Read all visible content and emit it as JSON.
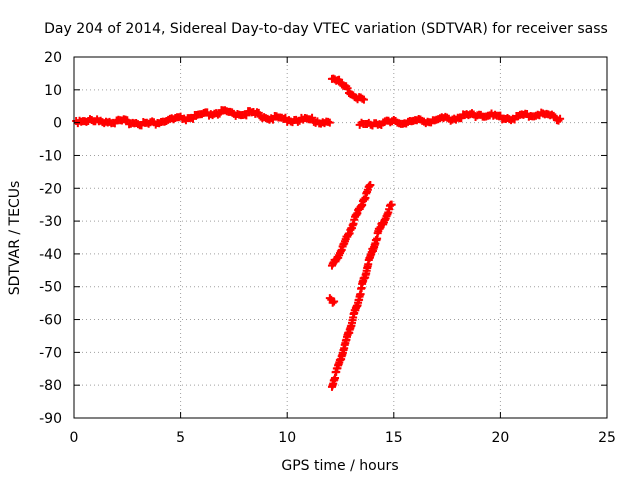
{
  "chart_data": {
    "type": "scatter",
    "title": "Day 204 of 2014, Sidereal Day-to-day VTEC variation (SDTVAR) for receiver sass",
    "xlabel": "GPS time / hours",
    "ylabel": "SDTVAR / TECUs",
    "xlim": [
      0,
      25
    ],
    "ylim": [
      -90,
      20
    ],
    "xticks": [
      "0",
      "5",
      "10",
      "15",
      "20",
      "25"
    ],
    "yticks": [
      "20",
      "10",
      "0",
      "-10",
      "-20",
      "-30",
      "-40",
      "-50",
      "-60",
      "-70",
      "-80",
      "-90"
    ],
    "grid": true,
    "marker_color": "#ff0000",
    "series": [
      {
        "segments": [
          [
            [
              0.1,
              0.5
            ],
            [
              0.5,
              0.8
            ],
            [
              1,
              0.3
            ],
            [
              1.5,
              0.6
            ],
            [
              2,
              0.2
            ],
            [
              2.5,
              0.3
            ],
            [
              3,
              0.0
            ],
            [
              3.5,
              -0.4
            ],
            [
              4,
              0.2
            ],
            [
              4.5,
              0.8
            ],
            [
              5,
              1.2
            ],
            [
              5.5,
              1.5
            ],
            [
              6,
              2.2
            ],
            [
              6.5,
              2.8
            ],
            [
              7,
              3.2
            ],
            [
              7.5,
              2.6
            ],
            [
              8,
              3.0
            ],
            [
              8.5,
              2.6
            ],
            [
              9,
              1.8
            ],
            [
              9.5,
              1.2
            ],
            [
              10,
              1.0
            ],
            [
              10.5,
              0.8
            ],
            [
              11,
              0.9
            ],
            [
              11.5,
              0.4
            ],
            [
              12,
              0.0
            ]
          ],
          [
            [
              13.4,
              -0.8
            ],
            [
              14,
              -0.2
            ],
            [
              14.5,
              0.0
            ],
            [
              15,
              0.1
            ],
            [
              15.5,
              0.2
            ],
            [
              16,
              0.4
            ],
            [
              16.5,
              0.6
            ],
            [
              17,
              0.8
            ],
            [
              17.5,
              1.2
            ],
            [
              18,
              1.6
            ],
            [
              18.5,
              2.2
            ],
            [
              19,
              2.6
            ],
            [
              19.5,
              2.2
            ],
            [
              20,
              1.6
            ],
            [
              20.5,
              1.4
            ],
            [
              21,
              2.0
            ],
            [
              21.5,
              2.4
            ],
            [
              22,
              2.6
            ],
            [
              22.5,
              1.8
            ],
            [
              22.8,
              1.2
            ]
          ],
          [
            [
              12.1,
              14
            ],
            [
              12.5,
              12
            ],
            [
              12.9,
              9.5
            ],
            [
              13.3,
              7.5
            ],
            [
              13.6,
              7.0
            ]
          ],
          [
            [
              12.1,
              -44
            ],
            [
              12.6,
              -38
            ],
            [
              13.0,
              -32
            ],
            [
              13.4,
              -26
            ],
            [
              13.9,
              -19
            ]
          ],
          [
            [
              12.0,
              -54
            ],
            [
              12.2,
              -54.5
            ]
          ],
          [
            [
              12.1,
              -80
            ],
            [
              12.7,
              -68
            ],
            [
              13.3,
              -55
            ],
            [
              13.8,
              -43
            ],
            [
              14.3,
              -33
            ],
            [
              14.9,
              -25
            ]
          ]
        ]
      }
    ]
  }
}
